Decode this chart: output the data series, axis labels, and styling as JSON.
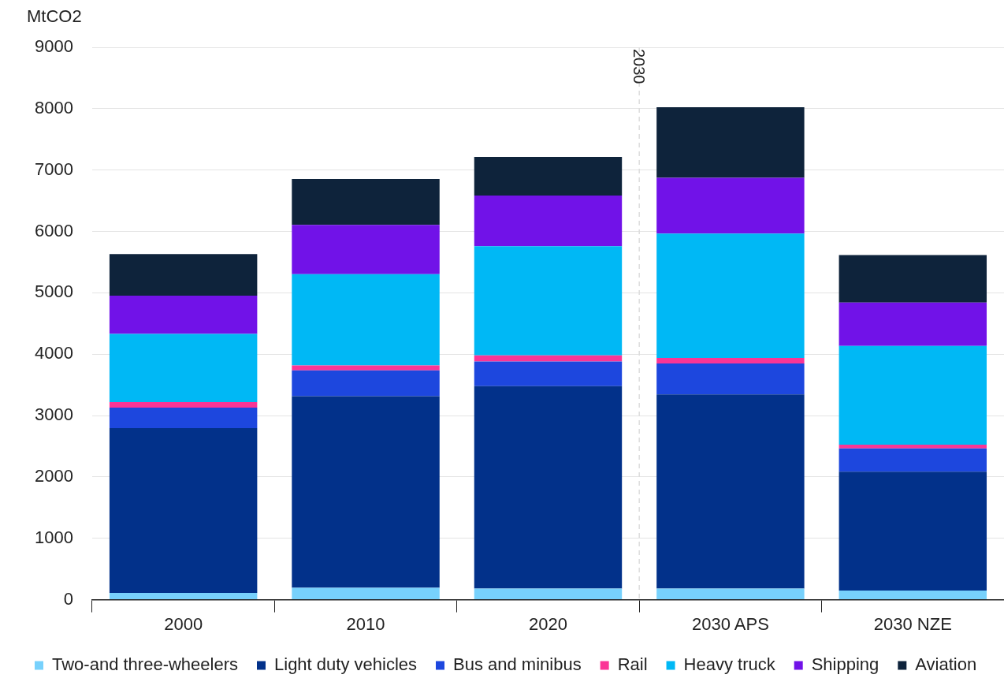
{
  "chart_data": {
    "type": "bar",
    "stacked": true,
    "ylabel": "MtCO2",
    "categories": [
      "2000",
      "2010",
      "2020",
      "2030 APS",
      "2030 NZE"
    ],
    "series": [
      {
        "name": "Two-and three-wheelers",
        "color": "#77d1fc",
        "values": [
          110,
          195,
          180,
          180,
          150
        ]
      },
      {
        "name": "Light duty vehicles",
        "color": "#02318a",
        "values": [
          2685,
          3120,
          3300,
          3165,
          1935
        ]
      },
      {
        "name": "Bus and minibus",
        "color": "#1d47de",
        "values": [
          335,
          420,
          400,
          505,
          380
        ]
      },
      {
        "name": "Rail",
        "color": "#fb3596",
        "values": [
          90,
          80,
          100,
          90,
          60
        ]
      },
      {
        "name": "Heavy truck",
        "color": "#00b8f5",
        "values": [
          1110,
          1490,
          1780,
          2025,
          1610
        ]
      },
      {
        "name": "Shipping",
        "color": "#7112e8",
        "values": [
          625,
          800,
          825,
          910,
          705
        ]
      },
      {
        "name": "Aviation",
        "color": "#0e233b",
        "values": [
          675,
          750,
          630,
          1150,
          775
        ]
      }
    ],
    "ylim": [
      0,
      9000
    ],
    "yticks": [
      0,
      1000,
      2000,
      3000,
      4000,
      5000,
      6000,
      7000,
      8000,
      9000
    ],
    "grid": "y",
    "legend": "bottom",
    "ref_lines": [
      {
        "axis": "x",
        "value": "2030 APS",
        "label": "2030",
        "line_style": "dashed",
        "color": "#dddddd"
      }
    ]
  }
}
